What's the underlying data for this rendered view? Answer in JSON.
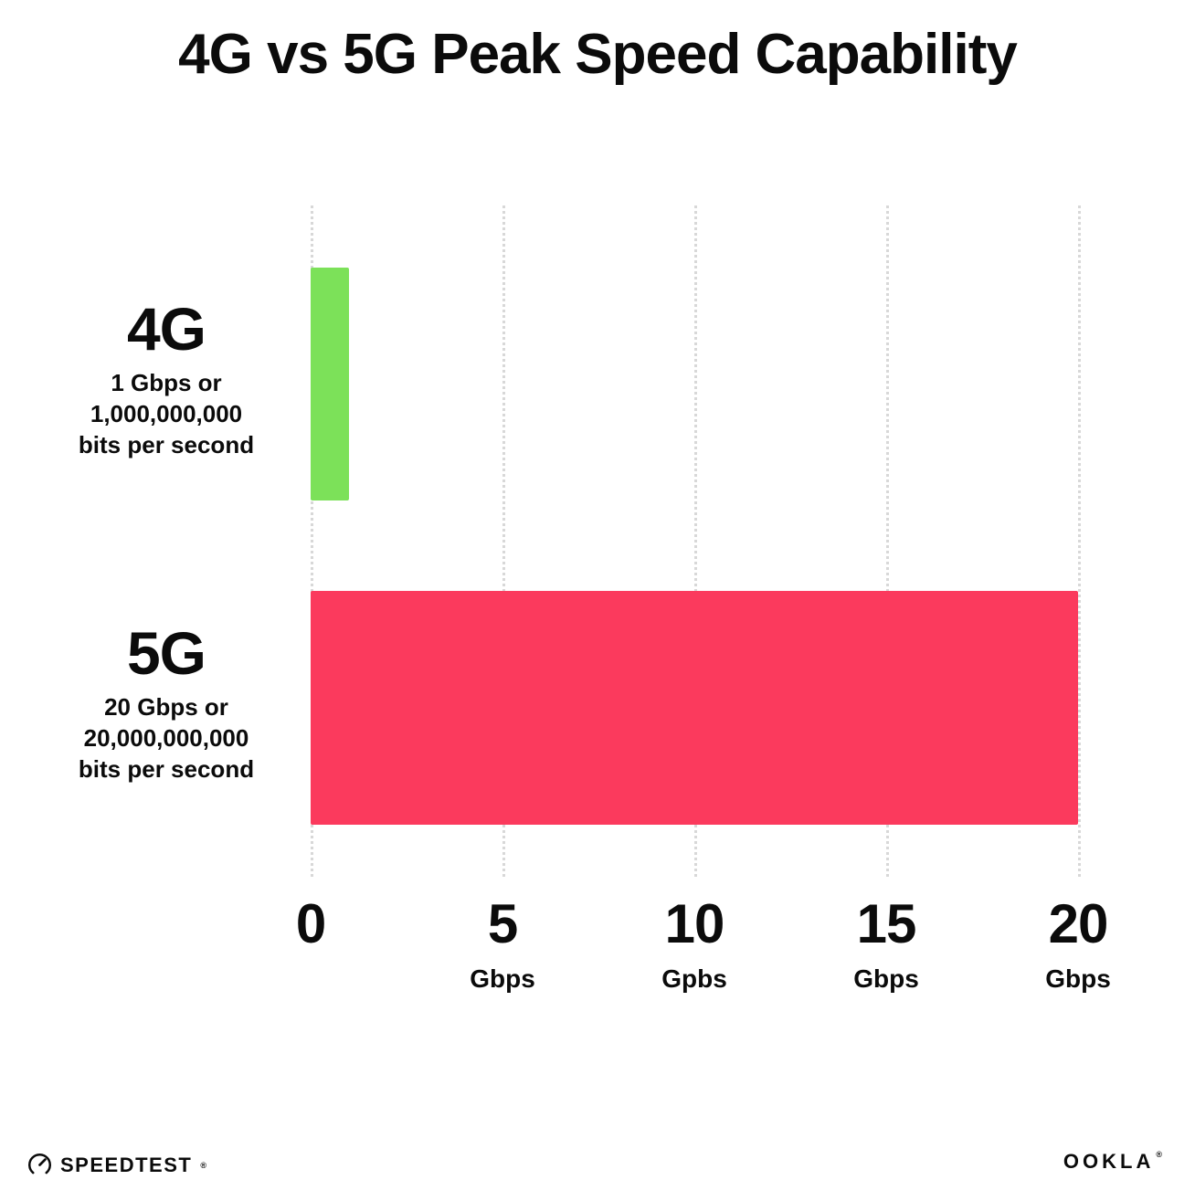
{
  "title": "4G vs 5G Peak Speed Capability",
  "chart_data": {
    "type": "bar",
    "orientation": "horizontal",
    "title": "4G vs 5G Peak Speed Capability",
    "categories": [
      "4G",
      "5G"
    ],
    "values": [
      1,
      20
    ],
    "value_unit": "Gbps",
    "bar_colors": [
      "#7CE159",
      "#FB3A5D"
    ],
    "xlim": [
      0,
      20
    ],
    "grid": "vertical-dotted",
    "legend": "none",
    "row_labels": [
      {
        "name": "4G",
        "line1": "1 Gbps or",
        "line2": "1,000,000,000",
        "line3": "bits per second"
      },
      {
        "name": "5G",
        "line1": "20 Gbps or",
        "line2": "20,000,000,000",
        "line3": "bits per second"
      }
    ],
    "x_ticks": [
      {
        "label": "0",
        "unit": ""
      },
      {
        "label": "5",
        "unit": "Gbps"
      },
      {
        "label": "10",
        "unit": "Gpbs"
      },
      {
        "label": "15",
        "unit": "Gbps"
      },
      {
        "label": "20",
        "unit": "Gbps"
      }
    ]
  },
  "footer": {
    "speedtest_label": "SPEEDTEST",
    "speedtest_mark": "®",
    "ookla_label": "OOKLA",
    "ookla_mark": "®"
  }
}
